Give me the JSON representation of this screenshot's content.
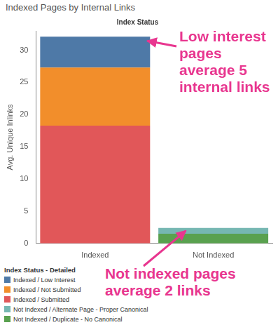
{
  "chart_data": {
    "type": "bar",
    "title": "Indexed Pages by Internal Links",
    "x_label": "Index Status",
    "y_label": "Avg. Unique Inlinks",
    "categories": [
      "Indexed",
      "Not Indexed"
    ],
    "series": [
      {
        "name": "Indexed / Low Interest",
        "color": "#4e79a7",
        "values": [
          4.8,
          null
        ]
      },
      {
        "name": "Indexed / Not Submitted",
        "color": "#f28e2b",
        "values": [
          9.0,
          null
        ]
      },
      {
        "name": "Indexed / Submitted",
        "color": "#e15759",
        "values": [
          18.3,
          null
        ]
      },
      {
        "name": "Not Indexed / Alternate Page - Proper Canonical",
        "color": "#76b7b2",
        "values": [
          null,
          0.9
        ]
      },
      {
        "name": "Not Indexed / Duplicate - No Canonical",
        "color": "#59a14f",
        "values": [
          null,
          1.5
        ]
      }
    ],
    "stacked": true,
    "ylim": [
      0,
      33
    ],
    "yticks": [
      0,
      5,
      10,
      15,
      20,
      25,
      30
    ],
    "grid": false,
    "legend": "bottom-left",
    "legend_title": "Index Status - Detailed",
    "annotations": [
      {
        "text": "Low interest pages average 5 internal links"
      },
      {
        "text": "Not indexed pages average 2 links"
      }
    ]
  }
}
